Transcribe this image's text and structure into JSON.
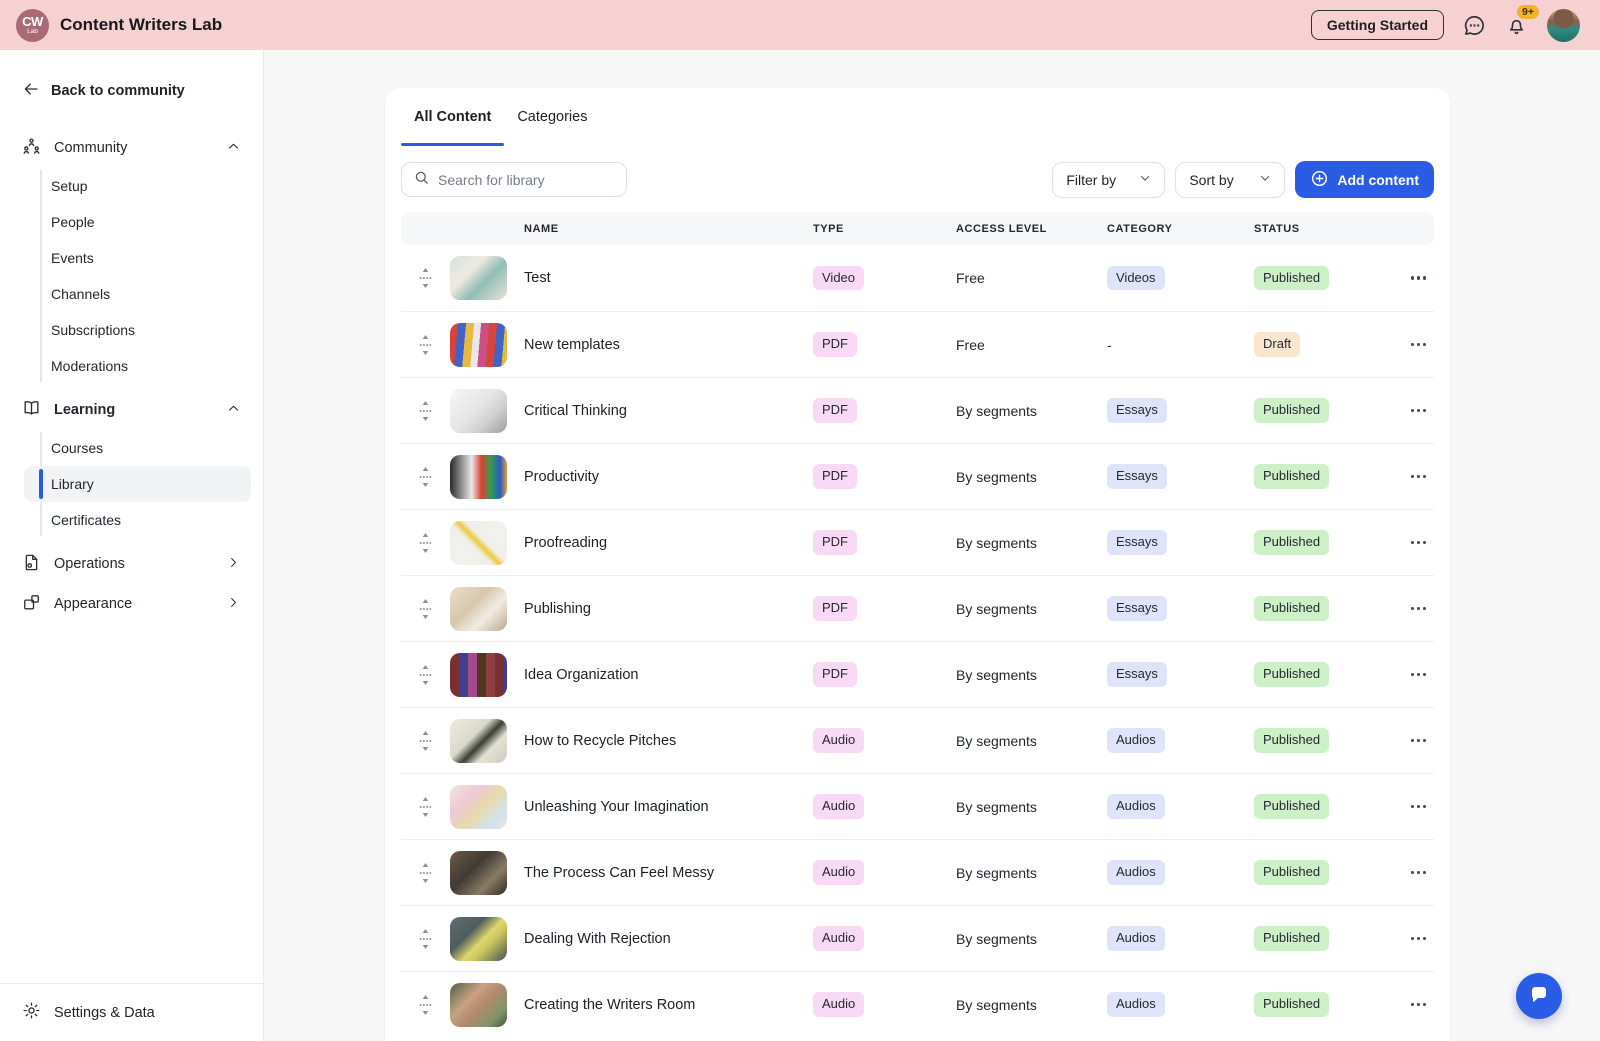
{
  "colors": {
    "accent": "#2b5ce6",
    "header_bg": "#f6d1d1",
    "logo_bg": "#a86a77",
    "badge_pink": "#fad9f7",
    "badge_lavender": "#dfe4fb",
    "badge_green": "#cdf1c6",
    "badge_peach": "#fae6cc",
    "notification_badge": "#f2b32c"
  },
  "header": {
    "logo_initials": "CW",
    "logo_sub": "Lab",
    "title": "Content Writers Lab",
    "getting_started_label": "Getting Started",
    "notification_count": "9+"
  },
  "sidebar": {
    "back_label": "Back to community",
    "sections": [
      {
        "label": "Community",
        "bold": false,
        "items": [
          {
            "label": "Setup"
          },
          {
            "label": "People"
          },
          {
            "label": "Events"
          },
          {
            "label": "Channels"
          },
          {
            "label": "Subscriptions"
          },
          {
            "label": "Moderations"
          }
        ]
      },
      {
        "label": "Learning",
        "bold": true,
        "items": [
          {
            "label": "Courses"
          },
          {
            "label": "Library",
            "active": true
          },
          {
            "label": "Certificates"
          }
        ]
      }
    ],
    "links": [
      {
        "label": "Operations"
      },
      {
        "label": "Appearance"
      }
    ],
    "footer_label": "Settings & Data"
  },
  "main": {
    "tabs": [
      {
        "label": "All Content",
        "active": true
      },
      {
        "label": "Categories",
        "active": false
      }
    ],
    "search_placeholder": "Search for library",
    "filter_label": "Filter by",
    "sort_label": "Sort by",
    "add_content_label": "Add content",
    "table": {
      "columns": [
        "NAME",
        "TYPE",
        "ACCESS LEVEL",
        "CATEGORY",
        "STATUS"
      ],
      "rows": [
        {
          "name": "Test",
          "type": "Video",
          "access": "Free",
          "category": "Videos",
          "status": "Published",
          "thumb_style": "th-test"
        },
        {
          "name": "New templates",
          "type": "PDF",
          "access": "Free",
          "category": "-",
          "status": "Draft",
          "thumb_style": "th-templates"
        },
        {
          "name": "Critical Thinking",
          "type": "PDF",
          "access": "By segments",
          "category": "Essays",
          "status": "Published",
          "thumb_style": "th-critical"
        },
        {
          "name": "Productivity",
          "type": "PDF",
          "access": "By segments",
          "category": "Essays",
          "status": "Published",
          "thumb_style": "th-productivity"
        },
        {
          "name": "Proofreading",
          "type": "PDF",
          "access": "By segments",
          "category": "Essays",
          "status": "Published",
          "thumb_style": "th-proofreading"
        },
        {
          "name": "Publishing",
          "type": "PDF",
          "access": "By segments",
          "category": "Essays",
          "status": "Published",
          "thumb_style": "th-publishing"
        },
        {
          "name": "Idea Organization",
          "type": "PDF",
          "access": "By segments",
          "category": "Essays",
          "status": "Published",
          "thumb_style": "th-idea"
        },
        {
          "name": "How to Recycle Pitches",
          "type": "Audio",
          "access": "By segments",
          "category": "Audios",
          "status": "Published",
          "thumb_style": "th-recycle"
        },
        {
          "name": "Unleashing Your Imagination",
          "type": "Audio",
          "access": "By segments",
          "category": "Audios",
          "status": "Published",
          "thumb_style": "th-unleash"
        },
        {
          "name": "The Process Can Feel Messy",
          "type": "Audio",
          "access": "By segments",
          "category": "Audios",
          "status": "Published",
          "thumb_style": "th-messy"
        },
        {
          "name": "Dealing With Rejection",
          "type": "Audio",
          "access": "By segments",
          "category": "Audios",
          "status": "Published",
          "thumb_style": "th-rejection"
        },
        {
          "name": "Creating the Writers Room",
          "type": "Audio",
          "access": "By segments",
          "category": "Audios",
          "status": "Published",
          "thumb_style": "th-writers"
        }
      ]
    }
  }
}
